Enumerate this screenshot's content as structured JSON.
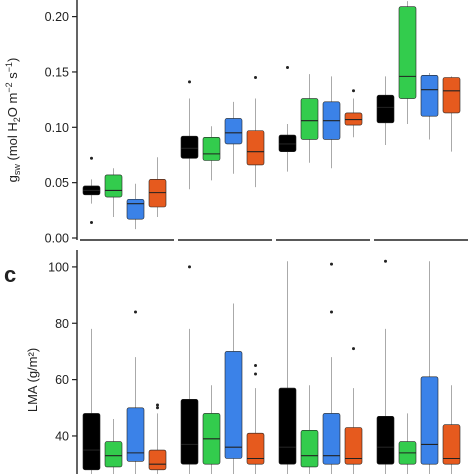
{
  "chart_data": [
    {
      "type": "box",
      "panel_label": "",
      "ylabel": "gsw (mol H2O m−2 s−1)",
      "ylabel_parts": {
        "g": "g",
        "sub": "sw",
        "rest": " (mol H",
        "h2": "2",
        "o": "O m",
        "m_exp": "−2",
        "s": " s",
        "s_exp": "−1",
        "close": ")"
      },
      "yticks": [
        "0.00",
        "0.05",
        "0.10",
        "0.15",
        "0.20"
      ],
      "ylim": [
        0,
        0.215
      ],
      "groups": 4,
      "series_colors": [
        "#000000",
        "#33cc4d",
        "#3b82e8",
        "#e65a1e"
      ],
      "boxes": [
        [
          {
            "q1": 0.039,
            "med": 0.043,
            "q3": 0.047,
            "lo": 0.031,
            "hi": 0.053,
            "out": [
              0.072,
              0.014
            ]
          },
          {
            "q1": 0.037,
            "med": 0.043,
            "q3": 0.057,
            "lo": 0.019,
            "hi": 0.063,
            "out": []
          },
          {
            "q1": 0.017,
            "med": 0.031,
            "q3": 0.035,
            "lo": 0.008,
            "hi": 0.049,
            "out": []
          },
          {
            "q1": 0.028,
            "med": 0.041,
            "q3": 0.053,
            "lo": 0.019,
            "hi": 0.073,
            "out": []
          }
        ],
        [
          {
            "q1": 0.072,
            "med": 0.081,
            "q3": 0.092,
            "lo": 0.044,
            "hi": 0.126,
            "out": [
              0.141
            ]
          },
          {
            "q1": 0.07,
            "med": 0.076,
            "q3": 0.091,
            "lo": 0.052,
            "hi": 0.101,
            "out": []
          },
          {
            "q1": 0.085,
            "med": 0.095,
            "q3": 0.108,
            "lo": 0.058,
            "hi": 0.123,
            "out": []
          },
          {
            "q1": 0.066,
            "med": 0.078,
            "q3": 0.097,
            "lo": 0.046,
            "hi": 0.126,
            "out": [
              0.145
            ]
          }
        ],
        [
          {
            "q1": 0.078,
            "med": 0.085,
            "q3": 0.093,
            "lo": 0.06,
            "hi": 0.103,
            "out": [
              0.154
            ]
          },
          {
            "q1": 0.089,
            "med": 0.106,
            "q3": 0.126,
            "lo": 0.068,
            "hi": 0.148,
            "out": []
          },
          {
            "q1": 0.089,
            "med": 0.106,
            "q3": 0.123,
            "lo": 0.063,
            "hi": 0.146,
            "out": []
          },
          {
            "q1": 0.102,
            "med": 0.107,
            "q3": 0.113,
            "lo": 0.091,
            "hi": 0.126,
            "out": [
              0.133
            ]
          }
        ],
        [
          {
            "q1": 0.104,
            "med": 0.118,
            "q3": 0.129,
            "lo": 0.084,
            "hi": 0.146,
            "out": []
          },
          {
            "q1": 0.126,
            "med": 0.146,
            "q3": 0.209,
            "lo": 0.103,
            "hi": 0.214,
            "out": []
          },
          {
            "q1": 0.11,
            "med": 0.134,
            "q3": 0.147,
            "lo": 0.089,
            "hi": 0.149,
            "out": []
          },
          {
            "q1": 0.113,
            "med": 0.133,
            "q3": 0.145,
            "lo": 0.078,
            "hi": 0.146,
            "out": []
          }
        ]
      ]
    },
    {
      "type": "box",
      "panel_label": "c",
      "ylabel": "LMA (g/m²)",
      "yticks": [
        "40",
        "60",
        "80",
        "100"
      ],
      "ylim": [
        26.5,
        106
      ],
      "groups": 4,
      "series_colors": [
        "#000000",
        "#33cc4d",
        "#3b82e8",
        "#e65a1e"
      ],
      "boxes": [
        [
          {
            "q1": 28,
            "med": 35,
            "q3": 48,
            "lo": 18,
            "hi": 78,
            "out": []
          },
          {
            "q1": 29,
            "med": 33,
            "q3": 38,
            "lo": 22,
            "hi": 46,
            "out": []
          },
          {
            "q1": 31,
            "med": 34,
            "q3": 50,
            "lo": 24,
            "hi": 68,
            "out": [
              84
            ]
          },
          {
            "q1": 28,
            "med": 30,
            "q3": 35,
            "lo": 22,
            "hi": 48,
            "out": [
              51,
              50
            ]
          }
        ],
        [
          {
            "q1": 30,
            "med": 37,
            "q3": 53,
            "lo": 20,
            "hi": 78,
            "out": [
              100
            ]
          },
          {
            "q1": 30,
            "med": 39,
            "q3": 48,
            "lo": 23,
            "hi": 58,
            "out": []
          },
          {
            "q1": 32,
            "med": 36,
            "q3": 70,
            "lo": 24,
            "hi": 87,
            "out": []
          },
          {
            "q1": 30,
            "med": 32,
            "q3": 41,
            "lo": 23,
            "hi": 57,
            "out": [
              65,
              62
            ]
          }
        ],
        [
          {
            "q1": 30,
            "med": 36,
            "q3": 57,
            "lo": 20,
            "hi": 102,
            "out": []
          },
          {
            "q1": 29,
            "med": 33,
            "q3": 42,
            "lo": 22,
            "hi": 58,
            "out": []
          },
          {
            "q1": 30,
            "med": 33,
            "q3": 48,
            "lo": 22,
            "hi": 68,
            "out": [
              101,
              84
            ]
          },
          {
            "q1": 30,
            "med": 32,
            "q3": 43,
            "lo": 22,
            "hi": 57,
            "out": [
              71
            ]
          }
        ],
        [
          {
            "q1": 30,
            "med": 36,
            "q3": 47,
            "lo": 20,
            "hi": 78,
            "out": [
              102
            ]
          },
          {
            "q1": 30,
            "med": 34,
            "q3": 38,
            "lo": 22,
            "hi": 48,
            "out": []
          },
          {
            "q1": 30,
            "med": 37,
            "q3": 61,
            "lo": 22,
            "hi": 102,
            "out": []
          },
          {
            "q1": 30,
            "med": 32,
            "q3": 44,
            "lo": 22,
            "hi": 58,
            "out": []
          }
        ]
      ]
    }
  ]
}
